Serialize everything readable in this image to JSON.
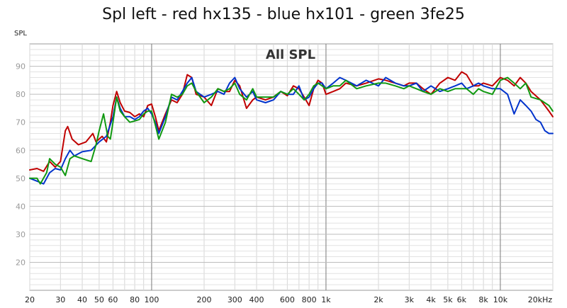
{
  "chart_data": {
    "type": "line",
    "title": "Spl left - red hx135 - blue hx101 - green 3fe25",
    "ylabel": "SPL",
    "annotation": "All SPL",
    "x_scale": "log",
    "xlim": [
      20,
      20000
    ],
    "ylim": [
      10,
      98
    ],
    "grid": true,
    "x_ticks": [
      20,
      30,
      40,
      50,
      60,
      80,
      100,
      200,
      300,
      400,
      600,
      800,
      1000,
      2000,
      3000,
      4000,
      5000,
      6000,
      8000,
      10000,
      20000
    ],
    "x_tick_labels": [
      "20",
      "30",
      "40",
      "50",
      "60",
      "80",
      "100",
      "200",
      "300",
      "400",
      "600",
      "800",
      "1k",
      "2k",
      "3k",
      "4k",
      "5k",
      "6k",
      "8k",
      "10k",
      "20kHz"
    ],
    "y_ticks": [
      20,
      30,
      40,
      50,
      60,
      70,
      80,
      90
    ],
    "y_tick_labels": [
      "20",
      "30",
      "40",
      "50",
      "60",
      "70",
      "80",
      "90"
    ],
    "series": [
      {
        "color": "#c00000",
        "points": [
          [
            20,
            53
          ],
          [
            22,
            53.5
          ],
          [
            24,
            52.5
          ],
          [
            26,
            56
          ],
          [
            28,
            54
          ],
          [
            30,
            56
          ],
          [
            32,
            67
          ],
          [
            33,
            68.5
          ],
          [
            35,
            64
          ],
          [
            38,
            62
          ],
          [
            42,
            63
          ],
          [
            46,
            66
          ],
          [
            48,
            63
          ],
          [
            52,
            65
          ],
          [
            55,
            63
          ],
          [
            58,
            70
          ],
          [
            60,
            76
          ],
          [
            63,
            81
          ],
          [
            66,
            77
          ],
          [
            70,
            74
          ],
          [
            75,
            73.5
          ],
          [
            80,
            72
          ],
          [
            85,
            73
          ],
          [
            90,
            72
          ],
          [
            95,
            76
          ],
          [
            100,
            76.5
          ],
          [
            105,
            72
          ],
          [
            110,
            67
          ],
          [
            120,
            73
          ],
          [
            130,
            78
          ],
          [
            140,
            77
          ],
          [
            150,
            80
          ],
          [
            160,
            87
          ],
          [
            170,
            86
          ],
          [
            180,
            80
          ],
          [
            200,
            79
          ],
          [
            220,
            76
          ],
          [
            240,
            82
          ],
          [
            260,
            81
          ],
          [
            280,
            81
          ],
          [
            300,
            85
          ],
          [
            320,
            83
          ],
          [
            350,
            75
          ],
          [
            380,
            78
          ],
          [
            400,
            79
          ],
          [
            450,
            78
          ],
          [
            500,
            79
          ],
          [
            550,
            81
          ],
          [
            600,
            79.5
          ],
          [
            650,
            83
          ],
          [
            700,
            82
          ],
          [
            750,
            79
          ],
          [
            800,
            76
          ],
          [
            850,
            82
          ],
          [
            900,
            85
          ],
          [
            950,
            84
          ],
          [
            1000,
            80
          ],
          [
            1100,
            81
          ],
          [
            1200,
            82
          ],
          [
            1300,
            84
          ],
          [
            1500,
            83
          ],
          [
            1700,
            84
          ],
          [
            2000,
            85.5
          ],
          [
            2200,
            85
          ],
          [
            2500,
            84
          ],
          [
            2800,
            83
          ],
          [
            3000,
            84
          ],
          [
            3300,
            84
          ],
          [
            3600,
            82
          ],
          [
            4000,
            80
          ],
          [
            4500,
            84
          ],
          [
            5000,
            86
          ],
          [
            5500,
            85
          ],
          [
            6000,
            88
          ],
          [
            6400,
            87
          ],
          [
            7000,
            83
          ],
          [
            7500,
            83
          ],
          [
            8000,
            84
          ],
          [
            9000,
            83
          ],
          [
            10000,
            86
          ],
          [
            11000,
            85
          ],
          [
            12000,
            83
          ],
          [
            13000,
            86
          ],
          [
            14000,
            84
          ],
          [
            15000,
            81
          ],
          [
            17000,
            78
          ],
          [
            19000,
            74
          ],
          [
            20000,
            72
          ]
        ]
      },
      {
        "color": "#0033cc",
        "points": [
          [
            20,
            50
          ],
          [
            22,
            49
          ],
          [
            24,
            48
          ],
          [
            26,
            52
          ],
          [
            28,
            53.5
          ],
          [
            30,
            53
          ],
          [
            32,
            57
          ],
          [
            34,
            60
          ],
          [
            36,
            58
          ],
          [
            40,
            59.5
          ],
          [
            45,
            60
          ],
          [
            50,
            63
          ],
          [
            55,
            65
          ],
          [
            60,
            72
          ],
          [
            63,
            79
          ],
          [
            66,
            75
          ],
          [
            70,
            72
          ],
          [
            75,
            72
          ],
          [
            80,
            71
          ],
          [
            85,
            72
          ],
          [
            90,
            74
          ],
          [
            95,
            75
          ],
          [
            100,
            73
          ],
          [
            105,
            70
          ],
          [
            110,
            66
          ],
          [
            120,
            72
          ],
          [
            130,
            79
          ],
          [
            140,
            78
          ],
          [
            150,
            81
          ],
          [
            160,
            84
          ],
          [
            170,
            86
          ],
          [
            180,
            81
          ],
          [
            200,
            79
          ],
          [
            220,
            80
          ],
          [
            240,
            81
          ],
          [
            260,
            80
          ],
          [
            280,
            84
          ],
          [
            300,
            86
          ],
          [
            320,
            82
          ],
          [
            350,
            79
          ],
          [
            380,
            81
          ],
          [
            400,
            78
          ],
          [
            450,
            77
          ],
          [
            500,
            78
          ],
          [
            550,
            81
          ],
          [
            600,
            80
          ],
          [
            650,
            80
          ],
          [
            700,
            83
          ],
          [
            750,
            78
          ],
          [
            800,
            79
          ],
          [
            850,
            82
          ],
          [
            900,
            84
          ],
          [
            950,
            84
          ],
          [
            1000,
            82
          ],
          [
            1100,
            84
          ],
          [
            1200,
            86
          ],
          [
            1300,
            85
          ],
          [
            1500,
            83
          ],
          [
            1700,
            85
          ],
          [
            2000,
            83
          ],
          [
            2200,
            86
          ],
          [
            2500,
            84
          ],
          [
            2800,
            83
          ],
          [
            3000,
            83
          ],
          [
            3300,
            84
          ],
          [
            3600,
            81
          ],
          [
            4000,
            83
          ],
          [
            4500,
            81
          ],
          [
            5000,
            82
          ],
          [
            5500,
            83
          ],
          [
            6000,
            84
          ],
          [
            6400,
            82
          ],
          [
            7000,
            83
          ],
          [
            7500,
            84
          ],
          [
            8000,
            83
          ],
          [
            9000,
            82
          ],
          [
            10000,
            82
          ],
          [
            11000,
            80
          ],
          [
            12000,
            73
          ],
          [
            13000,
            78
          ],
          [
            14000,
            76
          ],
          [
            15000,
            74
          ],
          [
            16000,
            71
          ],
          [
            17000,
            70
          ],
          [
            18000,
            67
          ],
          [
            19000,
            66
          ],
          [
            20000,
            66
          ]
        ]
      },
      {
        "color": "#119911",
        "points": [
          [
            20,
            50
          ],
          [
            22,
            50
          ],
          [
            23,
            48
          ],
          [
            25,
            52
          ],
          [
            26,
            57
          ],
          [
            28,
            55
          ],
          [
            30,
            54
          ],
          [
            32,
            51
          ],
          [
            34,
            57
          ],
          [
            36,
            58
          ],
          [
            40,
            57
          ],
          [
            45,
            56
          ],
          [
            48,
            62
          ],
          [
            50,
            67
          ],
          [
            53,
            73
          ],
          [
            56,
            65
          ],
          [
            58,
            64
          ],
          [
            60,
            70
          ],
          [
            63,
            79
          ],
          [
            66,
            74
          ],
          [
            70,
            72
          ],
          [
            75,
            70
          ],
          [
            80,
            70.5
          ],
          [
            85,
            71
          ],
          [
            90,
            73
          ],
          [
            95,
            74
          ],
          [
            100,
            74
          ],
          [
            105,
            69
          ],
          [
            110,
            64
          ],
          [
            120,
            70
          ],
          [
            130,
            80
          ],
          [
            140,
            79
          ],
          [
            150,
            80
          ],
          [
            160,
            83
          ],
          [
            170,
            84
          ],
          [
            180,
            81
          ],
          [
            200,
            77
          ],
          [
            220,
            79
          ],
          [
            240,
            82
          ],
          [
            260,
            81
          ],
          [
            280,
            82
          ],
          [
            300,
            84
          ],
          [
            320,
            80
          ],
          [
            350,
            78
          ],
          [
            380,
            82
          ],
          [
            400,
            79
          ],
          [
            450,
            79
          ],
          [
            500,
            79
          ],
          [
            550,
            81
          ],
          [
            600,
            80
          ],
          [
            650,
            82
          ],
          [
            700,
            80
          ],
          [
            750,
            78
          ],
          [
            800,
            80
          ],
          [
            850,
            83
          ],
          [
            900,
            84
          ],
          [
            950,
            83
          ],
          [
            1000,
            82
          ],
          [
            1100,
            83
          ],
          [
            1200,
            83
          ],
          [
            1300,
            85
          ],
          [
            1500,
            82
          ],
          [
            1700,
            83
          ],
          [
            2000,
            84
          ],
          [
            2200,
            84
          ],
          [
            2500,
            83
          ],
          [
            2800,
            82
          ],
          [
            3000,
            83
          ],
          [
            3300,
            82
          ],
          [
            3600,
            81
          ],
          [
            4000,
            80
          ],
          [
            4500,
            82
          ],
          [
            5000,
            81
          ],
          [
            5500,
            82
          ],
          [
            6000,
            82
          ],
          [
            6400,
            82
          ],
          [
            7000,
            80
          ],
          [
            7500,
            82
          ],
          [
            8000,
            81
          ],
          [
            9000,
            80
          ],
          [
            10000,
            85
          ],
          [
            11000,
            86
          ],
          [
            12000,
            84
          ],
          [
            13000,
            82
          ],
          [
            14000,
            84
          ],
          [
            15000,
            79
          ],
          [
            17000,
            78
          ],
          [
            19000,
            76
          ],
          [
            20000,
            74
          ]
        ]
      }
    ]
  }
}
